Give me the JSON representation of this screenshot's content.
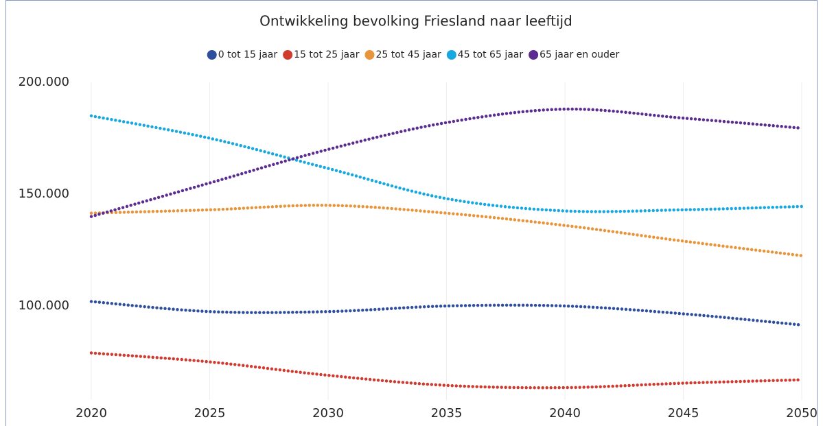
{
  "chart_data": {
    "type": "line",
    "title": "Ontwikkeling bevolking Friesland naar leeftijd",
    "x": [
      2020,
      2025,
      2030,
      2035,
      2040,
      2045,
      2050
    ],
    "xlim": [
      2020,
      2050
    ],
    "xticks": [
      2020,
      2025,
      2030,
      2035,
      2040,
      2045,
      2050
    ],
    "ylim": [
      58000,
      200000
    ],
    "yticks": [
      {
        "value": 100000,
        "label": "100.000"
      },
      {
        "value": 150000,
        "label": "150.000"
      },
      {
        "value": 200000,
        "label": "200.000"
      }
    ],
    "grid": "x",
    "legend": "top",
    "series": [
      {
        "name": "0 tot 15 jaar",
        "color": "#2f4f9e",
        "values": [
          102000,
          97500,
          97500,
          100000,
          100000,
          96500,
          91500
        ]
      },
      {
        "name": "15 tot 25 jaar",
        "color": "#d13a2f",
        "values": [
          79000,
          75000,
          69000,
          64500,
          63500,
          65500,
          67000
        ]
      },
      {
        "name": "25 tot 45 jaar",
        "color": "#e8943a",
        "values": [
          141500,
          143000,
          145000,
          141500,
          136000,
          129000,
          122500
        ]
      },
      {
        "name": "45 tot 65 jaar",
        "color": "#17a8e0",
        "values": [
          185000,
          175000,
          161500,
          148000,
          142500,
          143000,
          144500
        ]
      },
      {
        "name": "65 jaar en ouder",
        "color": "#5b2d91",
        "values": [
          140000,
          155000,
          170000,
          182000,
          188000,
          184000,
          179500
        ]
      }
    ]
  }
}
